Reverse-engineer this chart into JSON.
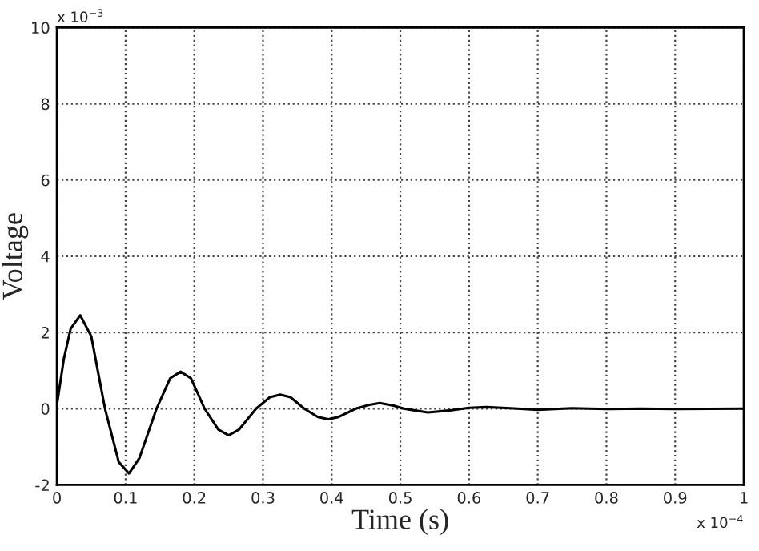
{
  "chart_data": {
    "type": "line",
    "xlabel": "Time (s)",
    "ylabel": "Voltage",
    "annotations": [
      "x 10$^{−3}$",
      "x 10$^{−4}$"
    ],
    "series": [
      {
        "color": "#000000",
        "x": [
          0,
          0.01,
          0.02,
          0.034,
          0.05,
          0.07,
          0.09,
          0.105,
          0.12,
          0.145,
          0.165,
          0.18,
          0.195,
          0.215,
          0.235,
          0.25,
          0.265,
          0.29,
          0.31,
          0.325,
          0.34,
          0.36,
          0.38,
          0.395,
          0.41,
          0.435,
          0.455,
          0.47,
          0.49,
          0.505,
          0.54,
          0.57,
          0.6,
          0.625,
          0.66,
          0.7,
          0.75,
          0.8,
          0.85,
          0.9,
          1.0
        ],
        "values": [
          0.1,
          1.3,
          2.1,
          2.45,
          1.9,
          0,
          -1.4,
          -1.7,
          -1.3,
          0,
          0.8,
          0.97,
          0.8,
          0,
          -0.55,
          -0.7,
          -0.55,
          0,
          0.3,
          0.37,
          0.3,
          0,
          -0.22,
          -0.28,
          -0.22,
          0,
          0.1,
          0.15,
          0.08,
          0,
          -0.1,
          -0.05,
          0.02,
          0.04,
          0.01,
          -0.03,
          0.01,
          -0.01,
          0,
          -0.01,
          0
        ]
      }
    ],
    "xlim": [
      0,
      1
    ],
    "ylim": [
      -2,
      10
    ],
    "xticks": [
      0,
      0.1,
      0.2,
      0.3,
      0.4,
      0.5,
      0.6,
      0.7,
      0.8,
      0.9,
      1
    ],
    "yticks": [
      -2,
      0,
      2,
      4,
      6,
      8,
      10
    ],
    "grid": true,
    "legend": false,
    "marker": "none",
    "line_style": "solid"
  }
}
